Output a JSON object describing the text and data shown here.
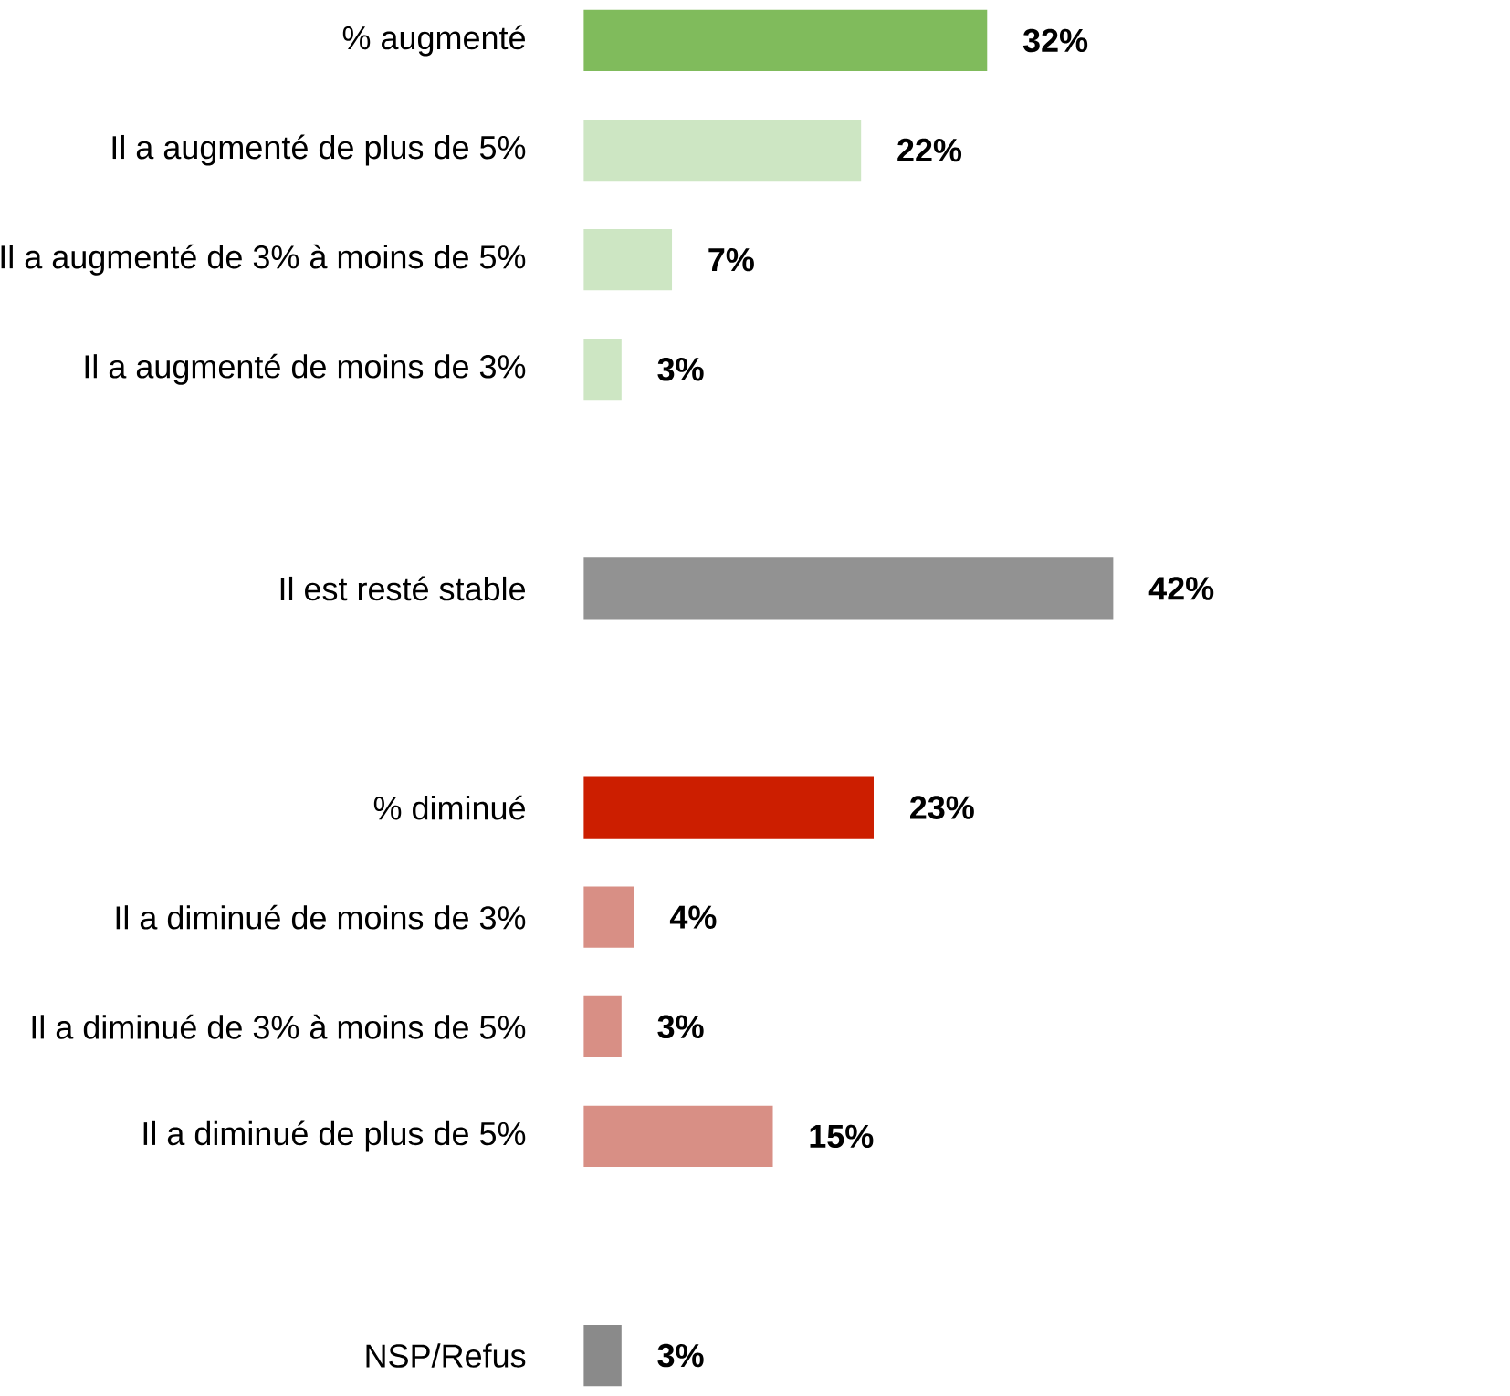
{
  "chart_data": {
    "type": "bar",
    "orientation": "horizontal",
    "categories": [
      "% augmenté",
      "Il a augmenté de plus de 5%",
      "Il a augmenté de 3% à moins de 5%",
      "Il a augmenté de moins de 3%",
      null,
      "Il est resté stable",
      null,
      "% diminué",
      "Il a diminué de moins de 3%",
      "Il a diminué de 3% à moins de 5%",
      "Il a diminué de plus de 5%",
      null,
      "NSP/Refus"
    ],
    "values": [
      32,
      22,
      7,
      3,
      null,
      42,
      null,
      23,
      4,
      3,
      15,
      null,
      3
    ],
    "colors": [
      "#80bb5c",
      "#cde6c3",
      "#cde6c3",
      "#cde6c3",
      null,
      "#929292",
      null,
      "#cc1e00",
      "#d88f85",
      "#d88f85",
      "#d88f85",
      null,
      "#8a8a8a"
    ],
    "value_labels": [
      "32%",
      "22%",
      "7%",
      "3%",
      null,
      "42%",
      null,
      "23%",
      "4%",
      "3%",
      "15%",
      null,
      "3%"
    ],
    "tick_labels": "y"
  }
}
